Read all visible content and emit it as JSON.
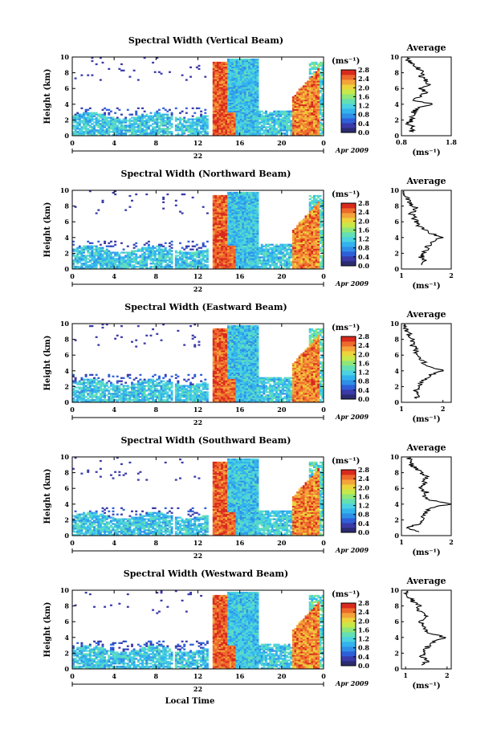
{
  "colors": {
    "colormap": [
      "#2b2b70",
      "#3a3aa8",
      "#2f5fd8",
      "#2f8fe8",
      "#33b3ee",
      "#4ad2e0",
      "#63dfb4",
      "#8fe679",
      "#c7e84a",
      "#ecd43a",
      "#f4a43a",
      "#ee6a2c",
      "#d92a1e"
    ],
    "axis": "#000000",
    "background": "#ffffff"
  },
  "figure": {
    "xlabel": "Local Time",
    "date_label": "Apr 2009",
    "colorbar_unit": "(ms⁻¹)",
    "colorbar_ticks": [
      "0.0",
      "0.4",
      "0.8",
      "1.2",
      "1.6",
      "2.0",
      "2.4",
      "2.8"
    ],
    "avg_title": "Average",
    "avg_xlabel": "(ms⁻¹)"
  },
  "chart_data": [
    {
      "type": "heatmap",
      "title": "Spectral Width (Vertical Beam)",
      "ylabel": "Height (km)",
      "x_ticks": [
        "0",
        "4",
        "8",
        "12",
        "16",
        "20",
        "0"
      ],
      "day_label": "22",
      "y_ticks": [
        "0",
        "2",
        "4",
        "6",
        "8",
        "10"
      ],
      "xlim": [
        0,
        24
      ],
      "ylim": [
        0,
        10
      ],
      "colorbar": {
        "label": "(ms⁻¹)",
        "range": [
          0.0,
          2.8
        ]
      },
      "average": {
        "title": "Average",
        "xlabel": "(ms⁻¹)",
        "x_ticks": [
          "0.8",
          "1.8"
        ],
        "xlim": [
          0.8,
          1.8
        ],
        "y_ticks": [
          "0",
          "2",
          "4",
          "6",
          "8",
          "10"
        ],
        "heights": [
          0.5,
          1,
          1.5,
          2,
          2.5,
          3,
          3.5,
          4,
          4.5,
          5,
          5.5,
          6,
          6.5,
          7,
          7.5,
          8,
          8.5,
          9,
          9.5
        ],
        "values": [
          1.0,
          1.05,
          0.95,
          1.0,
          1.0,
          1.05,
          1.1,
          1.45,
          1.05,
          1.15,
          1.3,
          1.2,
          1.35,
          1.3,
          1.2,
          1.25,
          1.15,
          1.05,
          0.95
        ]
      }
    },
    {
      "type": "heatmap",
      "title": "Spectral Width (Northward Beam)",
      "ylabel": "Height (km)",
      "x_ticks": [
        "0",
        "4",
        "8",
        "12",
        "16",
        "20",
        "0"
      ],
      "day_label": "22",
      "y_ticks": [
        "0",
        "2",
        "4",
        "6",
        "8",
        "10"
      ],
      "xlim": [
        0,
        24
      ],
      "ylim": [
        0,
        10
      ],
      "colorbar": {
        "label": "(ms⁻¹)",
        "range": [
          0.0,
          2.8
        ]
      },
      "average": {
        "title": "Average",
        "xlabel": "(ms⁻¹)",
        "x_ticks": [
          "1",
          "2"
        ],
        "xlim": [
          1,
          2
        ],
        "y_ticks": [
          "0",
          "2",
          "4",
          "6",
          "8",
          "10"
        ],
        "heights": [
          0.5,
          1,
          1.5,
          2,
          2.5,
          3,
          3.5,
          4,
          4.5,
          5,
          5.5,
          6,
          6.5,
          7,
          7.5,
          8,
          8.5,
          9,
          9.5
        ],
        "values": [
          1.4,
          1.5,
          1.4,
          1.45,
          1.5,
          1.55,
          1.6,
          1.85,
          1.6,
          1.5,
          1.35,
          1.3,
          1.25,
          1.2,
          1.3,
          1.25,
          1.15,
          1.1,
          1.05
        ]
      }
    },
    {
      "type": "heatmap",
      "title": "Spectral Width (Eastward Beam)",
      "ylabel": "Height (km)",
      "x_ticks": [
        "0",
        "4",
        "8",
        "12",
        "16",
        "20",
        "0"
      ],
      "day_label": "22",
      "y_ticks": [
        "0",
        "2",
        "4",
        "6",
        "8",
        "10"
      ],
      "xlim": [
        0,
        24
      ],
      "ylim": [
        0,
        10
      ],
      "colorbar": {
        "label": "(ms⁻¹)",
        "range": [
          0.0,
          2.8
        ]
      },
      "average": {
        "title": "Average",
        "xlabel": "(ms⁻¹)",
        "x_ticks": [
          "1",
          "2"
        ],
        "xlim": [
          1,
          2.2
        ],
        "y_ticks": [
          "0",
          "2",
          "4",
          "6",
          "8",
          "10"
        ],
        "heights": [
          0.5,
          1,
          1.5,
          2,
          2.5,
          3,
          3.5,
          4,
          4.5,
          5,
          5.5,
          6,
          6.5,
          7,
          7.5,
          8,
          8.5,
          9,
          9.5
        ],
        "values": [
          1.3,
          1.45,
          1.35,
          1.4,
          1.45,
          1.6,
          1.7,
          2.0,
          1.7,
          1.55,
          1.45,
          1.4,
          1.35,
          1.3,
          1.25,
          1.3,
          1.2,
          1.15,
          1.1
        ]
      }
    },
    {
      "type": "heatmap",
      "title": "Spectral Width (Southward Beam)",
      "ylabel": "Height (km)",
      "x_ticks": [
        "0",
        "4",
        "8",
        "12",
        "16",
        "20",
        "0"
      ],
      "day_label": "22",
      "y_ticks": [
        "0",
        "2",
        "4",
        "6",
        "8",
        "10"
      ],
      "xlim": [
        0,
        24
      ],
      "ylim": [
        0,
        10
      ],
      "colorbar": {
        "label": "(ms⁻¹)",
        "range": [
          0.0,
          2.8
        ]
      },
      "average": {
        "title": "Average",
        "xlabel": "(ms⁻¹)",
        "x_ticks": [
          "1",
          "2"
        ],
        "xlim": [
          1,
          2
        ],
        "y_ticks": [
          "0",
          "2",
          "4",
          "6",
          "8",
          "10"
        ],
        "heights": [
          0.5,
          1,
          1.5,
          2,
          2.5,
          3,
          3.5,
          4,
          4.5,
          5,
          5.5,
          6,
          6.5,
          7,
          7.5,
          8,
          8.5,
          9,
          9.5
        ],
        "values": [
          1.3,
          1.1,
          1.35,
          1.4,
          1.45,
          1.5,
          1.6,
          1.95,
          1.6,
          1.45,
          1.5,
          1.35,
          1.5,
          1.4,
          1.55,
          1.4,
          1.3,
          1.2,
          1.15
        ]
      }
    },
    {
      "type": "heatmap",
      "title": "Spectral Width (Westward Beam)",
      "ylabel": "Height (km)",
      "x_ticks": [
        "0",
        "4",
        "8",
        "12",
        "16",
        "20",
        "0"
      ],
      "day_label": "22",
      "y_ticks": [
        "0",
        "2",
        "4",
        "6",
        "8",
        "10"
      ],
      "xlim": [
        0,
        24
      ],
      "ylim": [
        0,
        10
      ],
      "colorbar": {
        "label": "(ms⁻¹)",
        "range": [
          0.0,
          2.8
        ]
      },
      "average": {
        "title": "Average",
        "xlabel": "(ms⁻¹)",
        "x_ticks": [
          "1",
          "2"
        ],
        "xlim": [
          0.9,
          2.1
        ],
        "y_ticks": [
          "0",
          "2",
          "4",
          "6",
          "8",
          "10"
        ],
        "heights": [
          0.5,
          1,
          1.5,
          2,
          2.5,
          3,
          3.5,
          4,
          4.5,
          5,
          5.5,
          6,
          6.5,
          7,
          7.5,
          8,
          8.5,
          9,
          9.5
        ],
        "values": [
          1.45,
          1.5,
          1.4,
          1.45,
          1.5,
          1.55,
          1.7,
          1.95,
          1.6,
          1.45,
          1.4,
          1.35,
          1.5,
          1.4,
          1.3,
          1.35,
          1.2,
          1.1,
          1.0
        ]
      }
    }
  ]
}
